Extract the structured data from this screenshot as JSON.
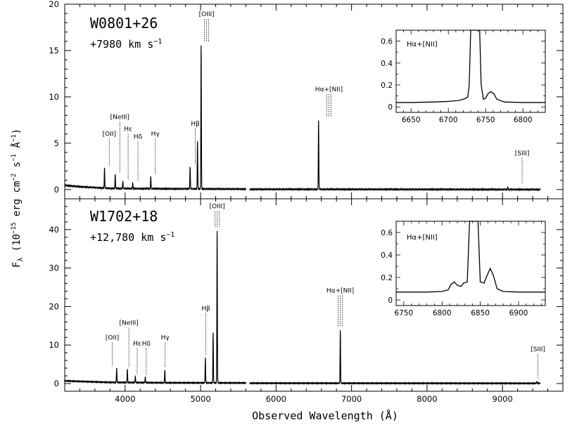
{
  "chart_data": [
    {
      "type": "line",
      "panel": "top",
      "object_label": "W0801+26",
      "velocity_label": "+7980 km s",
      "velocity_unit_exp": "−1",
      "xlim": [
        3200,
        9800
      ],
      "ylim": [
        -1,
        20
      ],
      "xticks": [
        4000,
        5000,
        6000,
        7000,
        8000,
        9000
      ],
      "yticks": [
        0,
        5,
        10,
        15,
        20
      ],
      "gap": [
        5600,
        5650
      ],
      "continuum": [
        [
          3200,
          0.45
        ],
        [
          3400,
          0.3
        ],
        [
          3800,
          0.12
        ],
        [
          4500,
          0.08
        ],
        [
          5600,
          0.05
        ],
        [
          5650,
          0.03
        ],
        [
          7000,
          0.02
        ],
        [
          9500,
          0.0
        ]
      ],
      "peaks": [
        [
          3727,
          2.2
        ],
        [
          3869,
          1.5
        ],
        [
          3970,
          0.8
        ],
        [
          4101,
          0.6
        ],
        [
          4340,
          1.3
        ],
        [
          4861,
          2.4
        ],
        [
          4959,
          5.1
        ],
        [
          5007,
          15.5
        ],
        [
          6563,
          7.4
        ],
        [
          9069,
          0.3
        ]
      ],
      "line_labels": [
        {
          "text": "[OII]",
          "x": 3790,
          "y": 2.5,
          "label_y": 5.8
        },
        {
          "text": "[NeIII]",
          "x": 3930,
          "y": 1.8,
          "label_y": 7.6
        },
        {
          "text": "Hε",
          "x": 4040,
          "y": 1.0,
          "label_y": 6.3
        },
        {
          "text": "Hδ",
          "x": 4170,
          "y": 0.9,
          "label_y": 5.5
        },
        {
          "text": "Hγ",
          "x": 4400,
          "y": 1.6,
          "label_y": 5.8
        },
        {
          "text": "Hβ",
          "x": 4930,
          "y": 2.7,
          "label_y": 6.9
        },
        {
          "text": "[OIII]",
          "x": 5080,
          "y": 16.0,
          "label_y": 18.7
        },
        {
          "text": "Hα+[NII]",
          "x": 6700,
          "y": 7.8,
          "label_y": 10.6
        },
        {
          "text": "[SIII]",
          "x": 9260,
          "y": 0.6,
          "label_y": 3.7
        }
      ],
      "inset": {
        "label": "Hα+[NII]",
        "xlim": [
          6630,
          6830
        ],
        "ylim": [
          -0.05,
          0.7
        ],
        "xticks": [
          6650,
          6700,
          6750,
          6800
        ],
        "yticks": [
          0,
          0.2,
          0.4,
          0.6
        ],
        "points": [
          [
            6630,
            0.04
          ],
          [
            6650,
            0.04
          ],
          [
            6680,
            0.045
          ],
          [
            6700,
            0.05
          ],
          [
            6715,
            0.06
          ],
          [
            6722,
            0.075
          ],
          [
            6726,
            0.09
          ],
          [
            6728,
            0.2
          ],
          [
            6730,
            0.7
          ],
          [
            6742,
            0.7
          ],
          [
            6744,
            0.2
          ],
          [
            6747,
            0.07
          ],
          [
            6750,
            0.08
          ],
          [
            6753,
            0.12
          ],
          [
            6757,
            0.14
          ],
          [
            6761,
            0.12
          ],
          [
            6765,
            0.07
          ],
          [
            6775,
            0.045
          ],
          [
            6800,
            0.04
          ],
          [
            6830,
            0.04
          ]
        ]
      }
    },
    {
      "type": "line",
      "panel": "bottom",
      "object_label": "W1702+18",
      "velocity_label": "+12,780 km s",
      "velocity_unit_exp": "−1",
      "xlim": [
        3200,
        9800
      ],
      "ylim": [
        -2,
        48
      ],
      "xticks": [
        4000,
        5000,
        6000,
        7000,
        8000,
        9000
      ],
      "yticks": [
        0,
        10,
        20,
        30,
        40
      ],
      "gap": [
        5600,
        5650
      ],
      "continuum": [
        [
          3200,
          0.7
        ],
        [
          3400,
          0.55
        ],
        [
          3800,
          0.3
        ],
        [
          4500,
          0.2
        ],
        [
          5600,
          0.15
        ],
        [
          5650,
          0.1
        ],
        [
          7000,
          0.08
        ],
        [
          9500,
          0.05
        ]
      ],
      "peaks": [
        [
          3888,
          3.7
        ],
        [
          4030,
          3.5
        ],
        [
          4135,
          1.6
        ],
        [
          4267,
          1.4
        ],
        [
          4526,
          3.3
        ],
        [
          5063,
          6.5
        ],
        [
          5166,
          13.0
        ],
        [
          5219,
          39.5
        ],
        [
          6851,
          13.8
        ],
        [
          9456,
          0.5
        ]
      ],
      "line_labels": [
        {
          "text": "[OII]",
          "x": 3830,
          "y": 4.5,
          "label_y": 11.4
        },
        {
          "text": "[NeIII]",
          "x": 4050,
          "y": 4.3,
          "label_y": 15.2
        },
        {
          "text": "Hε",
          "x": 4160,
          "y": 2.4,
          "label_y": 9.9
        },
        {
          "text": "Hδ",
          "x": 4280,
          "y": 2.2,
          "label_y": 9.9
        },
        {
          "text": "Hγ",
          "x": 4530,
          "y": 4.1,
          "label_y": 11.4
        },
        {
          "text": "Hβ",
          "x": 5070,
          "y": 7.3,
          "label_y": 19.0
        },
        {
          "text": "[OIII]",
          "x": 5220,
          "y": 40.5,
          "label_y": 45.5
        },
        {
          "text": "Hα+[NII]",
          "x": 6850,
          "y": 14.6,
          "label_y": 23.6
        },
        {
          "text": "[SIII]",
          "x": 9470,
          "y": 1.2,
          "label_y": 8.4
        }
      ],
      "inset": {
        "label": "Hα+[NII]",
        "xlim": [
          6740,
          6935
        ],
        "ylim": [
          -0.05,
          0.7
        ],
        "xticks": [
          6750,
          6800,
          6850,
          6900
        ],
        "yticks": [
          0,
          0.2,
          0.4,
          0.6
        ],
        "points": [
          [
            6740,
            0.07
          ],
          [
            6780,
            0.07
          ],
          [
            6800,
            0.075
          ],
          [
            6808,
            0.09
          ],
          [
            6812,
            0.14
          ],
          [
            6816,
            0.16
          ],
          [
            6820,
            0.13
          ],
          [
            6825,
            0.12
          ],
          [
            6828,
            0.15
          ],
          [
            6833,
            0.16
          ],
          [
            6836,
            0.7
          ],
          [
            6847,
            0.7
          ],
          [
            6850,
            0.16
          ],
          [
            6855,
            0.15
          ],
          [
            6859,
            0.22
          ],
          [
            6863,
            0.28
          ],
          [
            6867,
            0.22
          ],
          [
            6872,
            0.1
          ],
          [
            6880,
            0.075
          ],
          [
            6900,
            0.07
          ],
          [
            6935,
            0.07
          ]
        ]
      }
    }
  ],
  "axes": {
    "xlabel": "Observed Wavelength (Å)",
    "ylabel_main": "F",
    "ylabel_sub": "λ",
    "ylabel_rest1": " (10",
    "ylabel_exp1": "−15",
    "ylabel_rest2": " erg cm",
    "ylabel_exp2": "−2",
    "ylabel_rest3": " s",
    "ylabel_exp3": "−1",
    "ylabel_rest4": " Å",
    "ylabel_exp4": "−1",
    "ylabel_rest5": ")"
  }
}
